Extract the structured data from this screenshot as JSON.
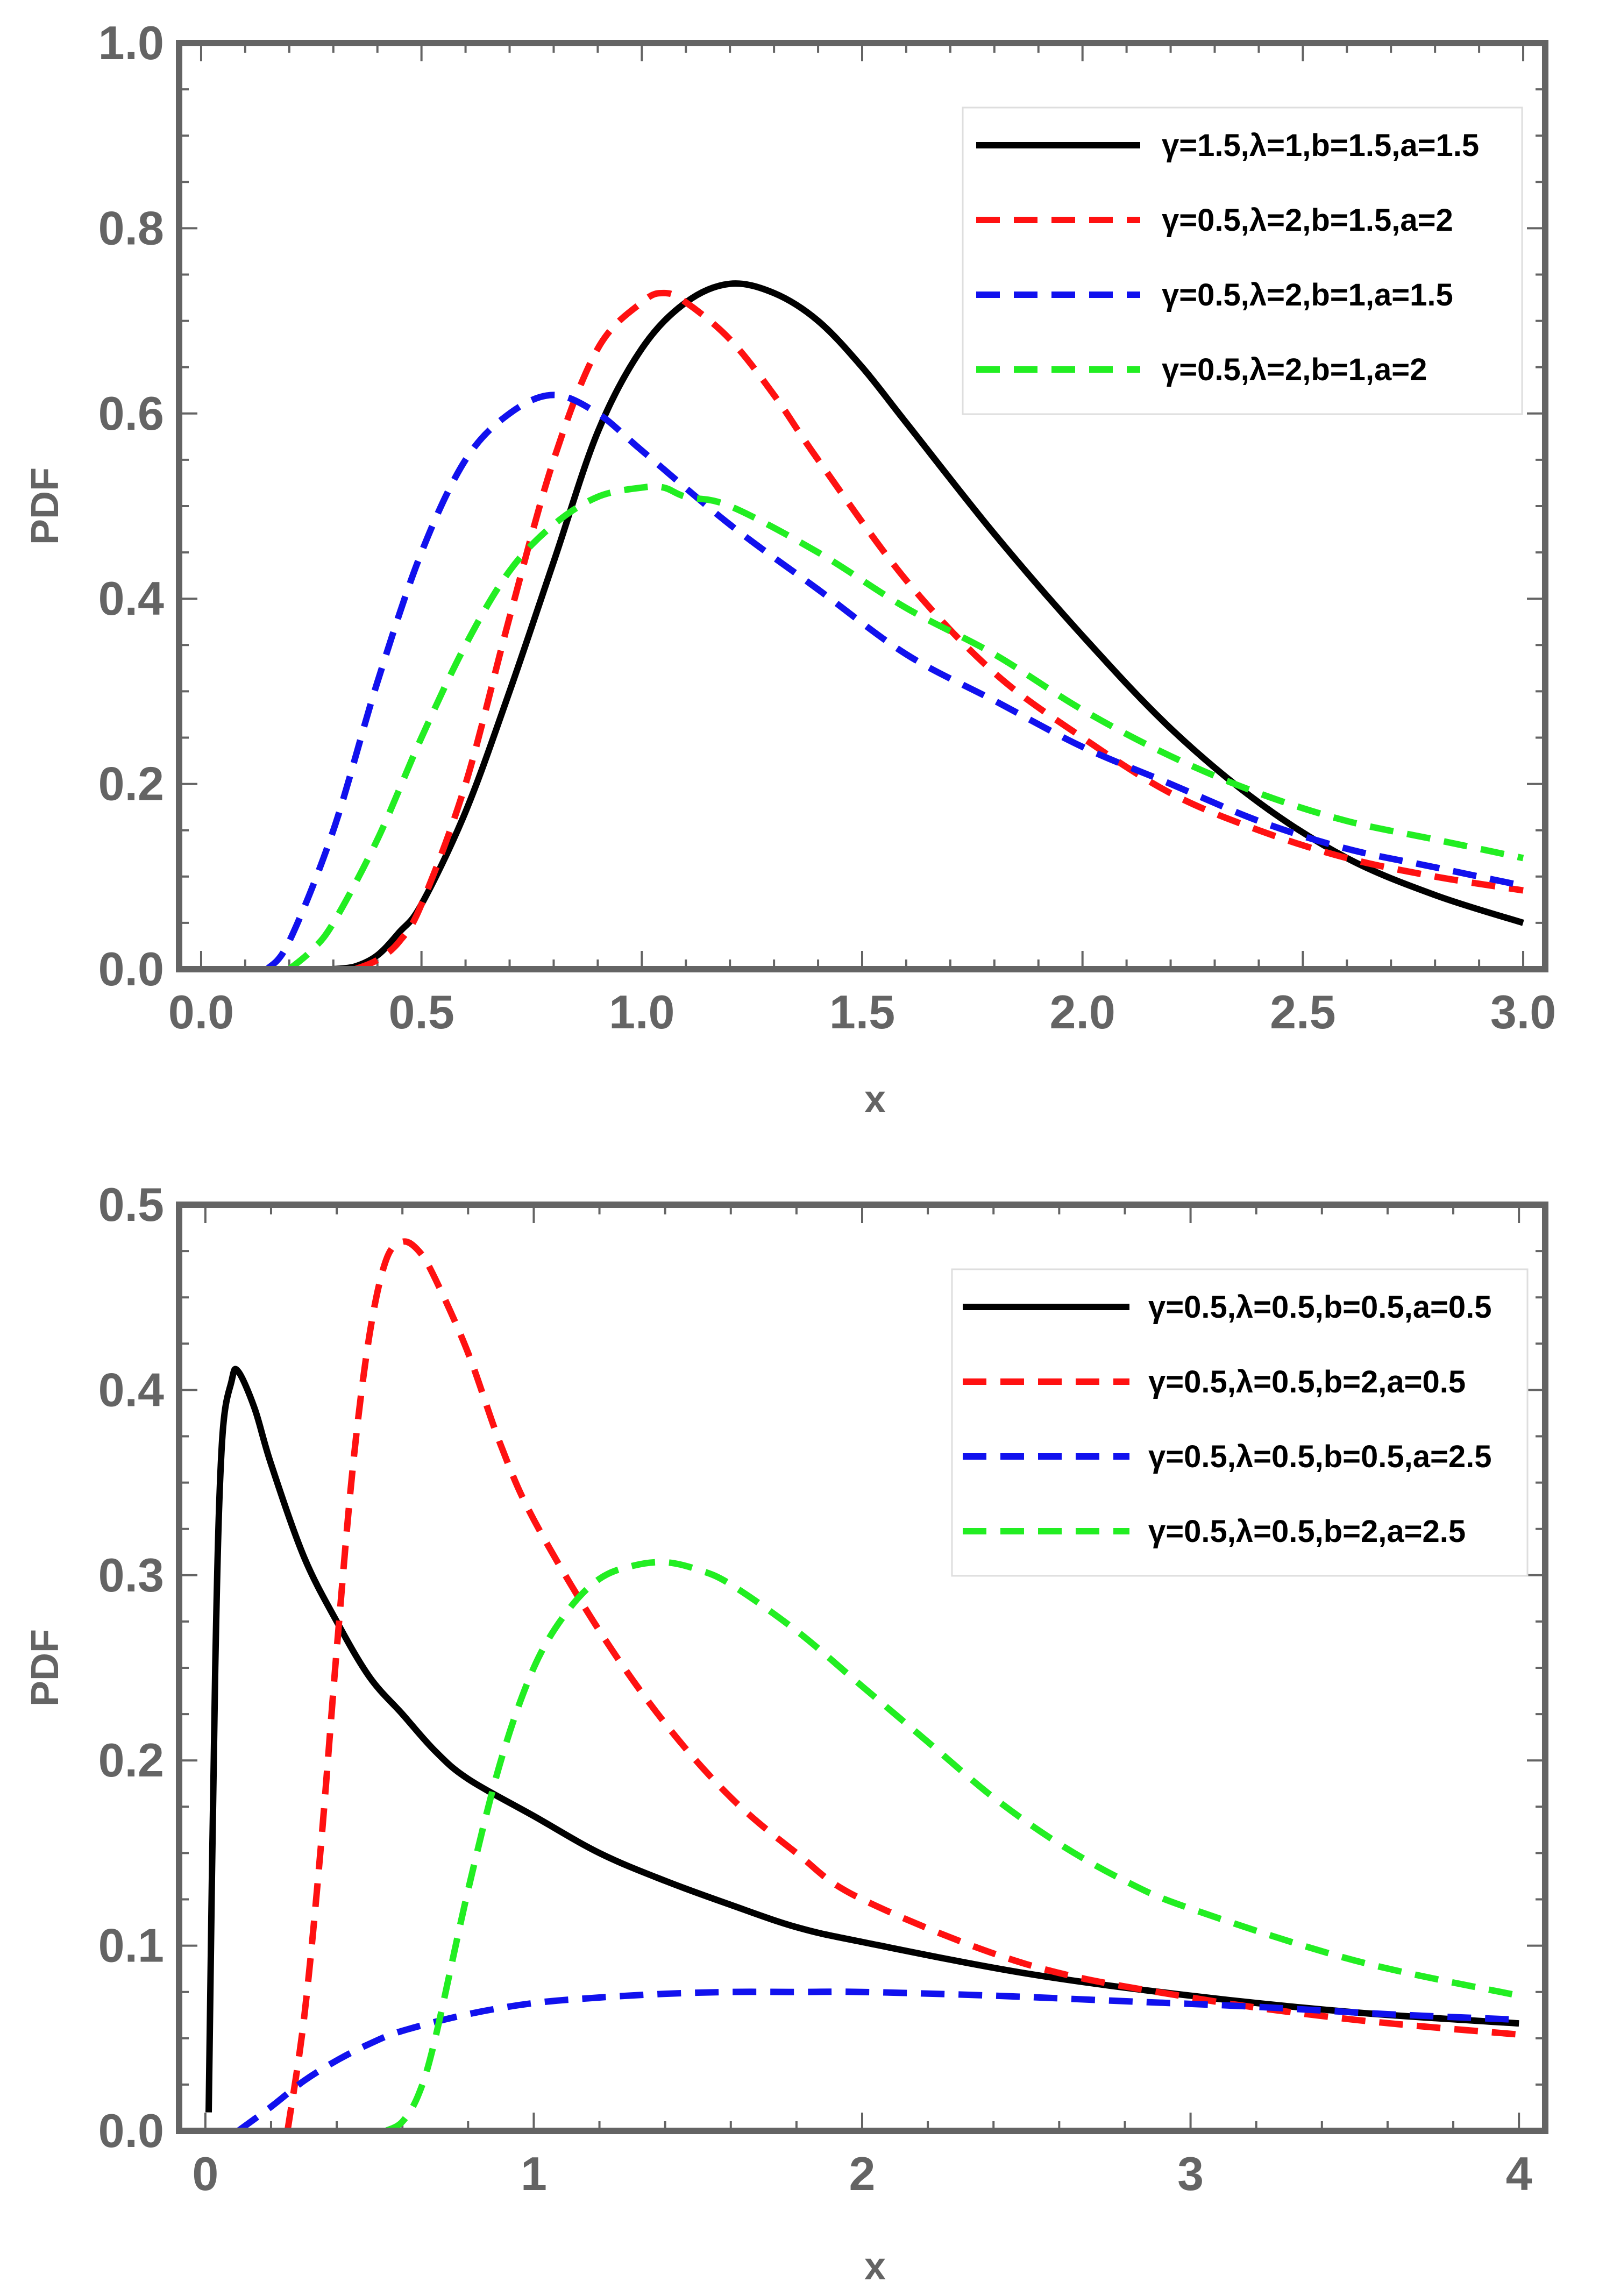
{
  "chart_data": [
    {
      "type": "line",
      "title": "",
      "xlabel": "x",
      "ylabel": "PDF",
      "xlim": [
        -0.05,
        3.05
      ],
      "ylim": [
        0,
        1.0
      ],
      "grid": false,
      "legend": "top-right",
      "x_ticks": [
        0.0,
        0.5,
        1.0,
        1.5,
        2.0,
        2.5,
        3.0
      ],
      "x_tick_labels": [
        "0.0",
        "0.5",
        "1.0",
        "1.5",
        "2.0",
        "2.5",
        "3.0"
      ],
      "y_ticks": [
        0.0,
        0.2,
        0.4,
        0.6,
        0.8,
        1.0
      ],
      "y_tick_labels": [
        "0.0",
        "0.2",
        "0.4",
        "0.6",
        "0.8",
        "1.0"
      ],
      "series": [
        {
          "name": "γ=1.5,λ=1,b=1.5,a=1.5",
          "color": "#000000",
          "dash": "solid",
          "x": [
            0.3,
            0.35,
            0.4,
            0.45,
            0.5,
            0.6,
            0.7,
            0.8,
            0.9,
            1.0,
            1.1,
            1.2,
            1.3,
            1.4,
            1.5,
            1.6,
            1.8,
            2.0,
            2.2,
            2.4,
            2.6,
            2.8,
            3.0
          ],
          "y": [
            0.0,
            0.003,
            0.015,
            0.04,
            0.07,
            0.17,
            0.3,
            0.44,
            0.58,
            0.67,
            0.72,
            0.74,
            0.73,
            0.7,
            0.65,
            0.59,
            0.47,
            0.36,
            0.26,
            0.18,
            0.12,
            0.08,
            0.05
          ]
        },
        {
          "name": "γ=0.5,λ=2,b=1.5,a=2",
          "color": "#ff1111",
          "dash": "dashed",
          "x": [
            0.35,
            0.4,
            0.45,
            0.5,
            0.6,
            0.7,
            0.8,
            0.9,
            1.0,
            1.05,
            1.1,
            1.2,
            1.3,
            1.4,
            1.6,
            1.8,
            2.0,
            2.2,
            2.4,
            2.6,
            2.8,
            3.0
          ],
          "y": [
            0.0,
            0.01,
            0.03,
            0.07,
            0.2,
            0.38,
            0.55,
            0.67,
            0.72,
            0.73,
            0.72,
            0.68,
            0.62,
            0.55,
            0.42,
            0.32,
            0.25,
            0.19,
            0.15,
            0.12,
            0.1,
            0.085
          ]
        },
        {
          "name": "γ=0.5,λ=2,b=1,a=1.5",
          "color": "#1111ee",
          "dash": "dashed",
          "x": [
            0.15,
            0.2,
            0.3,
            0.4,
            0.5,
            0.6,
            0.7,
            0.8,
            0.9,
            1.0,
            1.2,
            1.4,
            1.6,
            1.8,
            2.0,
            2.2,
            2.4,
            2.6,
            2.8,
            3.0
          ],
          "y": [
            0.0,
            0.03,
            0.15,
            0.31,
            0.45,
            0.55,
            0.6,
            0.62,
            0.6,
            0.56,
            0.48,
            0.41,
            0.34,
            0.29,
            0.24,
            0.2,
            0.16,
            0.13,
            0.11,
            0.09
          ]
        },
        {
          "name": "γ=0.5,λ=2,b=1,a=2",
          "color": "#22ee22",
          "dash": "dashed",
          "x": [
            0.2,
            0.25,
            0.3,
            0.4,
            0.5,
            0.6,
            0.7,
            0.8,
            0.9,
            1.0,
            1.05,
            1.1,
            1.2,
            1.4,
            1.6,
            1.8,
            2.0,
            2.2,
            2.4,
            2.6,
            2.8,
            3.0
          ],
          "y": [
            0.0,
            0.02,
            0.05,
            0.14,
            0.25,
            0.35,
            0.43,
            0.48,
            0.51,
            0.52,
            0.52,
            0.51,
            0.5,
            0.45,
            0.39,
            0.34,
            0.28,
            0.23,
            0.19,
            0.16,
            0.14,
            0.12
          ]
        }
      ]
    },
    {
      "type": "line",
      "title": "",
      "xlabel": "x",
      "ylabel": "PDF",
      "xlim": [
        -0.08,
        4.08
      ],
      "ylim": [
        0,
        0.5
      ],
      "grid": false,
      "legend": "top-right",
      "x_ticks": [
        0,
        1,
        2,
        3,
        4
      ],
      "x_tick_labels": [
        "0",
        "1",
        "2",
        "3",
        "4"
      ],
      "y_ticks": [
        0.0,
        0.1,
        0.2,
        0.3,
        0.4,
        0.5
      ],
      "y_tick_labels": [
        "0.0",
        "0.1",
        "0.2",
        "0.3",
        "0.4",
        "0.5"
      ],
      "series": [
        {
          "name": "γ=0.5,λ=0.5,b=0.5,a=0.5",
          "color": "#000000",
          "dash": "solid",
          "x": [
            0.01,
            0.03,
            0.05,
            0.08,
            0.1,
            0.15,
            0.2,
            0.3,
            0.4,
            0.5,
            0.6,
            0.7,
            0.8,
            1.0,
            1.2,
            1.4,
            1.6,
            1.8,
            2.0,
            2.5,
            3.0,
            3.5,
            4.0
          ],
          "y": [
            0.01,
            0.25,
            0.37,
            0.405,
            0.41,
            0.39,
            0.36,
            0.31,
            0.275,
            0.245,
            0.225,
            0.205,
            0.19,
            0.17,
            0.15,
            0.135,
            0.122,
            0.11,
            0.102,
            0.085,
            0.073,
            0.064,
            0.058
          ]
        },
        {
          "name": "γ=0.5,λ=0.5,b=2,a=0.5",
          "color": "#ff1111",
          "dash": "dashed",
          "x": [
            0.25,
            0.3,
            0.35,
            0.4,
            0.45,
            0.5,
            0.55,
            0.6,
            0.65,
            0.7,
            0.8,
            0.9,
            1.0,
            1.2,
            1.4,
            1.6,
            1.8,
            2.0,
            2.5,
            3.0,
            3.5,
            4.0
          ],
          "y": [
            0.0,
            0.06,
            0.15,
            0.26,
            0.36,
            0.43,
            0.47,
            0.48,
            0.475,
            0.46,
            0.42,
            0.37,
            0.33,
            0.27,
            0.22,
            0.18,
            0.15,
            0.125,
            0.09,
            0.072,
            0.06,
            0.052
          ]
        },
        {
          "name": "γ=0.5,λ=0.5,b=0.5,a=2.5",
          "color": "#1111ee",
          "dash": "dashed",
          "x": [
            0.1,
            0.2,
            0.3,
            0.4,
            0.5,
            0.6,
            0.8,
            1.0,
            1.2,
            1.4,
            1.6,
            1.8,
            2.0,
            2.4,
            2.8,
            3.2,
            3.6,
            4.0
          ],
          "y": [
            0.0,
            0.013,
            0.027,
            0.038,
            0.047,
            0.054,
            0.063,
            0.069,
            0.072,
            0.074,
            0.075,
            0.075,
            0.075,
            0.073,
            0.07,
            0.067,
            0.063,
            0.06
          ]
        },
        {
          "name": "γ=0.5,λ=0.5,b=2,a=2.5",
          "color": "#22ee22",
          "dash": "dashed",
          "x": [
            0.55,
            0.6,
            0.65,
            0.7,
            0.8,
            0.9,
            1.0,
            1.1,
            1.2,
            1.3,
            1.4,
            1.5,
            1.6,
            1.8,
            2.0,
            2.2,
            2.4,
            2.6,
            2.8,
            3.0,
            3.5,
            4.0
          ],
          "y": [
            0.0,
            0.005,
            0.02,
            0.05,
            0.13,
            0.2,
            0.25,
            0.28,
            0.298,
            0.305,
            0.307,
            0.303,
            0.295,
            0.27,
            0.24,
            0.21,
            0.18,
            0.155,
            0.135,
            0.12,
            0.092,
            0.073
          ]
        }
      ]
    }
  ]
}
